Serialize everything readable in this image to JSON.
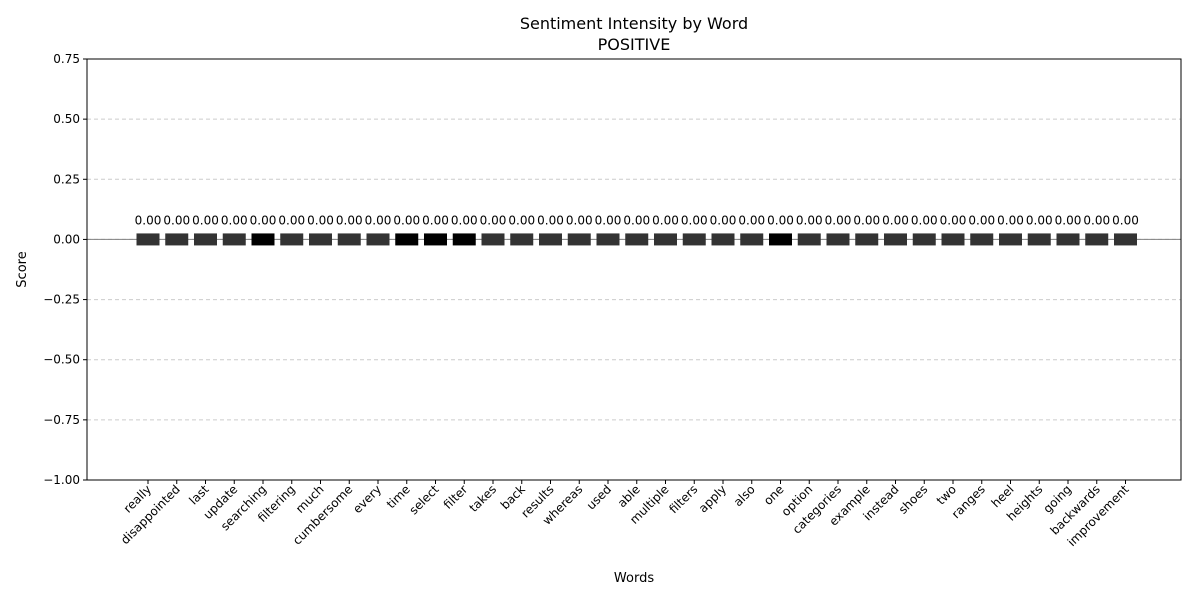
{
  "chart_data": {
    "type": "bar",
    "title": "Sentiment Intensity by Word",
    "subtitle": "POSITIVE",
    "xlabel": "Words",
    "ylabel": "Score",
    "ylim": [
      -1.0,
      0.75
    ],
    "yticks": [
      -1.0,
      -0.75,
      -0.5,
      -0.25,
      0.0,
      0.25,
      0.5,
      0.75
    ],
    "ytick_labels": [
      "−1.00",
      "−0.75",
      "−0.50",
      "−0.25",
      "0.00",
      "0.25",
      "0.50",
      "0.75"
    ],
    "grid": "horizontal-dashed",
    "categories": [
      "really",
      "disappointed",
      "last",
      "update",
      "searching",
      "filtering",
      "much",
      "cumbersome",
      "every",
      "time",
      "select",
      "filter",
      "takes",
      "back",
      "results",
      "whereas",
      "used",
      "able",
      "multiple",
      "filters",
      "apply",
      "also",
      "one",
      "option",
      "categories",
      "example",
      "instead",
      "shoes",
      "two",
      "ranges",
      "heel",
      "heights",
      "going",
      "backwards",
      "improvement"
    ],
    "values": [
      0,
      0,
      0,
      0,
      0,
      0,
      0,
      0,
      0,
      0,
      0,
      0,
      0,
      0,
      0,
      0,
      0,
      0,
      0,
      0,
      0,
      0,
      0,
      0,
      0,
      0,
      0,
      0,
      0,
      0,
      0,
      0,
      0,
      0,
      0
    ],
    "value_labels": [
      "0.00",
      "0.00",
      "0.00",
      "0.00",
      "0.00",
      "0.00",
      "0.00",
      "0.00",
      "0.00",
      "0.00",
      "0.00",
      "0.00",
      "0.00",
      "0.00",
      "0.00",
      "0.00",
      "0.00",
      "0.00",
      "0.00",
      "0.00",
      "0.00",
      "0.00",
      "0.00",
      "0.00",
      "0.00",
      "0.00",
      "0.00",
      "0.00",
      "0.00",
      "0.00",
      "0.00",
      "0.00",
      "0.00",
      "0.00",
      "0.00"
    ],
    "emphasized": [
      false,
      false,
      false,
      false,
      true,
      false,
      false,
      false,
      false,
      true,
      true,
      true,
      false,
      false,
      false,
      false,
      false,
      false,
      false,
      false,
      false,
      false,
      true,
      false,
      false,
      false,
      false,
      false,
      false,
      false,
      false,
      false,
      false,
      false,
      false
    ],
    "colors": {
      "bar": "#333333",
      "bar_emphasized": "#000000",
      "grid": "#cccccc",
      "zero_line": "#808080",
      "axis": "#000000"
    }
  }
}
